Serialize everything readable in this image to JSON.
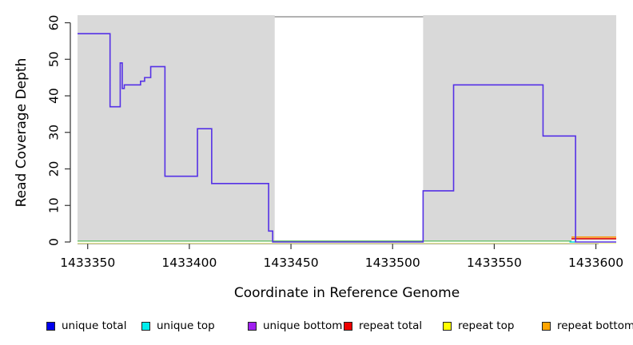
{
  "chart_data": {
    "type": "line",
    "subtype": "step",
    "title": "",
    "xlabel": "Coordinate in Reference Genome",
    "ylabel": "Read Coverage Depth",
    "xlim": [
      1433345,
      1433610
    ],
    "ylim": [
      0,
      62
    ],
    "x_ticks": [
      1433350,
      1433400,
      1433450,
      1433500,
      1433550,
      1433600
    ],
    "y_ticks": [
      0,
      10,
      20,
      30,
      40,
      50,
      60
    ],
    "grid": false,
    "plot_background": "#ffffff",
    "shaded_regions": {
      "color": "#d9d9d9",
      "regions": [
        {
          "from": 1433345,
          "to": 1433442
        },
        {
          "from": 1433515,
          "to": 1433610
        }
      ]
    },
    "main_series": {
      "name": "unique-coverage-step-line",
      "color": "#5531e6",
      "stroke_width": 1.6,
      "steps": [
        {
          "from": 1433345,
          "to": 1433361,
          "value": 57
        },
        {
          "from": 1433361,
          "to": 1433366,
          "value": 37
        },
        {
          "from": 1433366,
          "to": 1433367,
          "value": 49
        },
        {
          "from": 1433367,
          "to": 1433368,
          "value": 42
        },
        {
          "from": 1433368,
          "to": 1433376,
          "value": 43
        },
        {
          "from": 1433376,
          "to": 1433378,
          "value": 44
        },
        {
          "from": 1433378,
          "to": 1433381,
          "value": 45
        },
        {
          "from": 1433381,
          "to": 1433388,
          "value": 48
        },
        {
          "from": 1433388,
          "to": 1433404,
          "value": 18
        },
        {
          "from": 1433404,
          "to": 1433411,
          "value": 31
        },
        {
          "from": 1433411,
          "to": 1433439,
          "value": 16
        },
        {
          "from": 1433439,
          "to": 1433441,
          "value": 3
        },
        {
          "from": 1433441,
          "to": 1433515,
          "value": 0
        },
        {
          "from": 1433515,
          "to": 1433530,
          "value": 14
        },
        {
          "from": 1433530,
          "to": 1433574,
          "value": 43
        },
        {
          "from": 1433574,
          "to": 1433590,
          "value": 29
        },
        {
          "from": 1433590,
          "to": 1433610,
          "value": 0
        }
      ]
    },
    "baseline_segments": [
      {
        "name": "baseline-pale-yellow",
        "color": "#eeee99",
        "stroke_width": 1.3,
        "x0": 1433345,
        "x1": 1433610,
        "value": -0.35
      },
      {
        "name": "baseline-green",
        "color": "#63bc63",
        "stroke_width": 1.4,
        "x0": 1433345,
        "x1": 1433588,
        "value": 0.25
      },
      {
        "name": "baseline-cyan",
        "color": "#00d8e8",
        "stroke_width": 1.5,
        "x0": 1433587,
        "x1": 1433590,
        "value": 0
      },
      {
        "name": "repeat-red-segment",
        "color": "#e60000",
        "stroke_width": 1.4,
        "x0": 1433588,
        "x1": 1433610,
        "value": 0.9
      },
      {
        "name": "repeat-orange-segment",
        "color": "#ff9500",
        "stroke_width": 1.5,
        "x0": 1433588,
        "x1": 1433610,
        "value": 1.35
      }
    ],
    "legend": {
      "position": "bottom",
      "items": [
        {
          "label": "unique total",
          "color": "#0000ee"
        },
        {
          "label": "unique top",
          "color": "#00eeee"
        },
        {
          "label": "unique bottom",
          "color": "#a020f0"
        },
        {
          "label": "repeat total",
          "color": "#ee0000"
        },
        {
          "label": "repeat top",
          "color": "#ffff00"
        },
        {
          "label": "repeat bottom",
          "color": "#ffa500"
        }
      ]
    },
    "axis_color": "#333333",
    "top_border_color": "#999999",
    "tick_label_color": "#000000"
  }
}
